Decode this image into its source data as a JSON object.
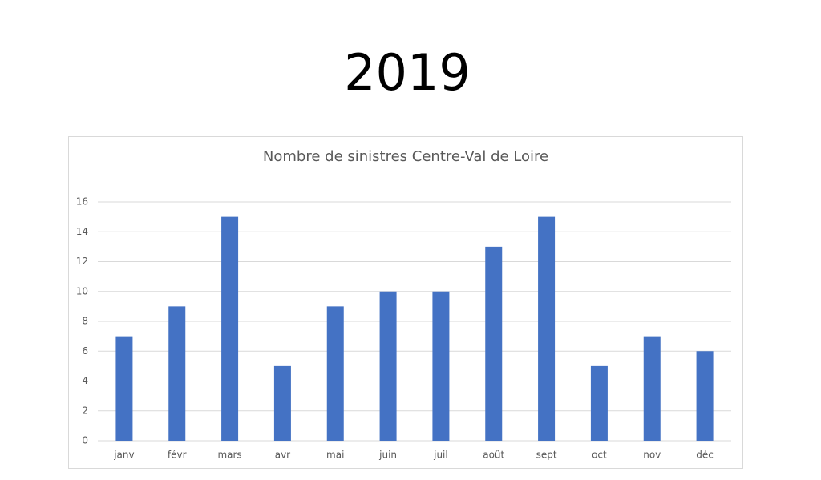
{
  "heading": "2019",
  "chart_data": {
    "type": "bar",
    "title": "Nombre de sinistres Centre-Val de Loire",
    "categories": [
      "janv",
      "févr",
      "mars",
      "avr",
      "mai",
      "juin",
      "juil",
      "août",
      "sept",
      "oct",
      "nov",
      "déc"
    ],
    "values": [
      7,
      9,
      15,
      5,
      9,
      10,
      10,
      13,
      15,
      5,
      7,
      6
    ],
    "color": "#4472c4",
    "ylim": [
      0,
      16
    ],
    "yticks": [
      0,
      2,
      4,
      6,
      8,
      10,
      12,
      14,
      16
    ],
    "grid": true
  }
}
